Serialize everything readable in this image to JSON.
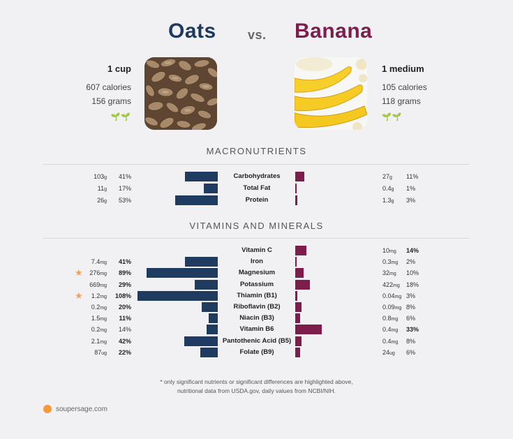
{
  "header": {
    "left_food": "Oats",
    "vs": "vs.",
    "right_food": "Banana"
  },
  "left": {
    "serving": "1 cup",
    "calories": "607 calories",
    "grams": "156 grams",
    "badge_icon": "sprout-icon"
  },
  "right": {
    "serving": "1 medium",
    "calories": "105 calories",
    "grams": "118 grams",
    "badge_icon": "sprout-icon"
  },
  "sections": {
    "macros": "MACRONUTRIENTS",
    "vitamins": "VITAMINS AND MINERALS"
  },
  "macros": [
    {
      "name": "Carbohydrates",
      "left_value": "103",
      "left_unit": "g",
      "left_pct": "41%",
      "left_bar": 0.41,
      "right_value": "27",
      "right_unit": "g",
      "right_pct": "11%",
      "right_bar": 0.11
    },
    {
      "name": "Total Fat",
      "left_value": "11",
      "left_unit": "g",
      "left_pct": "17%",
      "left_bar": 0.17,
      "right_value": "0.4",
      "right_unit": "g",
      "right_pct": "1%",
      "right_bar": 0.01
    },
    {
      "name": "Protein",
      "left_value": "26",
      "left_unit": "g",
      "left_pct": "53%",
      "left_bar": 0.53,
      "right_value": "1.3",
      "right_unit": "g",
      "right_pct": "3%",
      "right_bar": 0.03
    }
  ],
  "vitamins": [
    {
      "name": "Vitamin C",
      "left_value": "",
      "left_unit": "",
      "left_pct": "",
      "left_bold": false,
      "left_bar": 0,
      "right_value": "10",
      "right_unit": "mg",
      "right_pct": "14%",
      "right_bold": true,
      "right_bar": 0.14,
      "star": false
    },
    {
      "name": "Iron",
      "left_value": "7.4",
      "left_unit": "mg",
      "left_pct": "41%",
      "left_bold": true,
      "left_bar": 0.41,
      "right_value": "0.3",
      "right_unit": "mg",
      "right_pct": "2%",
      "right_bold": false,
      "right_bar": 0.02,
      "star": false
    },
    {
      "name": "Magnesium",
      "left_value": "276",
      "left_unit": "mg",
      "left_pct": "89%",
      "left_bold": true,
      "left_bar": 0.89,
      "right_value": "32",
      "right_unit": "mg",
      "right_pct": "10%",
      "right_bold": false,
      "right_bar": 0.1,
      "star": true
    },
    {
      "name": "Potassium",
      "left_value": "669",
      "left_unit": "mg",
      "left_pct": "29%",
      "left_bold": true,
      "left_bar": 0.29,
      "right_value": "422",
      "right_unit": "mg",
      "right_pct": "18%",
      "right_bold": false,
      "right_bar": 0.18,
      "star": false
    },
    {
      "name": "Thiamin (B1)",
      "left_value": "1.2",
      "left_unit": "mg",
      "left_pct": "108%",
      "left_bold": true,
      "left_bar": 1.0,
      "right_value": "0.04",
      "right_unit": "mg",
      "right_pct": "3%",
      "right_bold": false,
      "right_bar": 0.03,
      "star": true
    },
    {
      "name": "Riboflavin (B2)",
      "left_value": "0.2",
      "left_unit": "mg",
      "left_pct": "20%",
      "left_bold": true,
      "left_bar": 0.2,
      "right_value": "0.09",
      "right_unit": "mg",
      "right_pct": "8%",
      "right_bold": false,
      "right_bar": 0.08,
      "star": false
    },
    {
      "name": "Niacin (B3)",
      "left_value": "1.5",
      "left_unit": "mg",
      "left_pct": "11%",
      "left_bold": true,
      "left_bar": 0.11,
      "right_value": "0.8",
      "right_unit": "mg",
      "right_pct": "6%",
      "right_bold": false,
      "right_bar": 0.06,
      "star": false
    },
    {
      "name": "Vitamin B6",
      "left_value": "0.2",
      "left_unit": "mg",
      "left_pct": "14%",
      "left_bold": false,
      "left_bar": 0.14,
      "right_value": "0.4",
      "right_unit": "mg",
      "right_pct": "33%",
      "right_bold": true,
      "right_bar": 0.33,
      "star": false
    },
    {
      "name": "Pantothenic Acid (B5)",
      "left_value": "2.1",
      "left_unit": "mg",
      "left_pct": "42%",
      "left_bold": true,
      "left_bar": 0.42,
      "right_value": "0.4",
      "right_unit": "mg",
      "right_pct": "8%",
      "right_bold": false,
      "right_bar": 0.08,
      "star": false
    },
    {
      "name": "Folate (B9)",
      "left_value": "87",
      "left_unit": "ug",
      "left_pct": "22%",
      "left_bold": true,
      "left_bar": 0.22,
      "right_value": "24",
      "right_unit": "ug",
      "right_pct": "6%",
      "right_bold": false,
      "right_bar": 0.06,
      "star": false
    }
  ],
  "footnote": {
    "line1": "* only significant nutrients or significant differences are highlighted above,",
    "line2": "nutritional data from USDA.gov, daily values from NCBI/NIH."
  },
  "brand": {
    "name": "soupersage.com",
    "icon": "soupersage-logo-icon"
  },
  "colors": {
    "oats": "#1f3b5f",
    "banana": "#7d1d4b",
    "star": "#f0a15a"
  }
}
